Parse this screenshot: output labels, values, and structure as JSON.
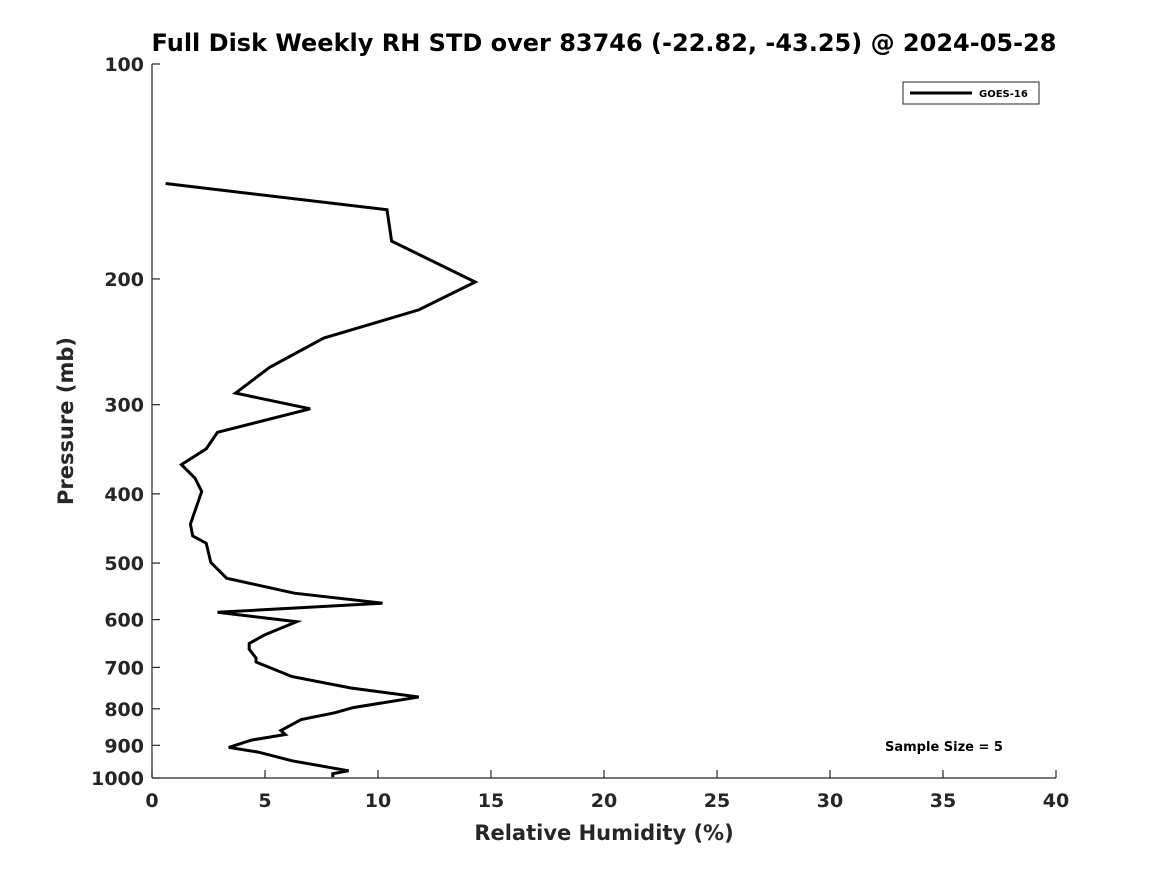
{
  "chart_data": {
    "type": "line",
    "title": "Full Disk Weekly RH STD over 83746 (-22.82, -43.25) @ 2024-05-28",
    "xlabel": "Relative Humidity (%)",
    "ylabel": "Pressure (mb)",
    "xlim": [
      0,
      40
    ],
    "ylim": [
      100,
      1000
    ],
    "yscale": "log",
    "y_reversed": true,
    "grid": false,
    "legend_position": "top-right",
    "x_ticks": [
      "0",
      "5",
      "10",
      "15",
      "20",
      "25",
      "30",
      "35",
      "40"
    ],
    "y_ticks": [
      "100",
      "200",
      "300",
      "400",
      "500",
      "600",
      "700",
      "800",
      "900",
      "1000"
    ],
    "annotation": "Sample Size = 5",
    "series": [
      {
        "name": "GOES-16",
        "color": "#000000",
        "x": [
          0.6,
          10.4,
          10.6,
          14.3,
          11.8,
          7.6,
          5.2,
          3.7,
          7.0,
          2.9,
          2.4,
          1.3,
          1.9,
          2.2,
          2.0,
          1.7,
          1.8,
          2.4,
          2.6,
          3.3,
          6.3,
          10.2,
          2.9,
          6.4,
          5.0,
          4.3,
          4.3,
          4.6,
          4.6,
          6.2,
          8.8,
          11.8,
          8.9,
          8.1,
          6.6,
          5.7,
          5.9,
          4.4,
          3.4,
          4.7,
          6.2,
          8.7,
          8.0,
          8.0
        ],
        "y": [
          147,
          160,
          177,
          202,
          221,
          242,
          266,
          289,
          304,
          328,
          346,
          364,
          380,
          397,
          414,
          441,
          458,
          469,
          499,
          525,
          551,
          569,
          586,
          604,
          630,
          648,
          660,
          679,
          688,
          721,
          748,
          770,
          797,
          810,
          828,
          858,
          869,
          885,
          906,
          920,
          946,
          977,
          986,
          997
        ]
      }
    ]
  }
}
